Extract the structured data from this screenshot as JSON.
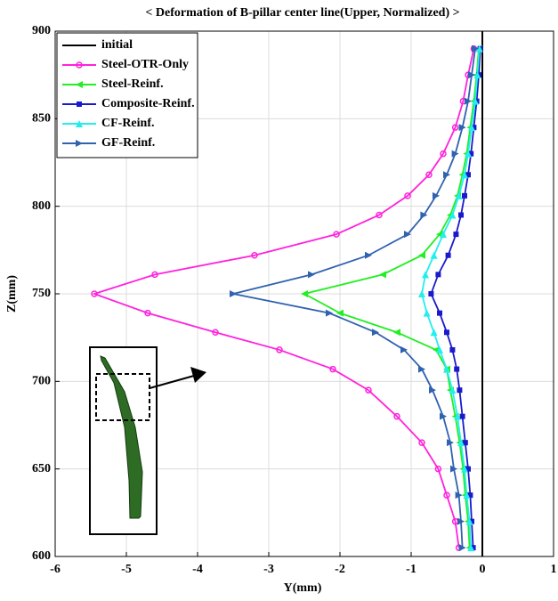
{
  "chart_data": {
    "type": "line",
    "title": "< Deformation of B-pillar center line(Upper, Normalized) >",
    "x_label": "Y(mm)",
    "y_label": "Z(mm)",
    "xlim": [
      -6,
      1
    ],
    "xticks": [
      -6,
      -5,
      -4,
      -3,
      -2,
      -1,
      0,
      1
    ],
    "ylim": [
      600,
      900
    ],
    "yticks": [
      600,
      650,
      700,
      750,
      800,
      850,
      900
    ],
    "grid": true,
    "legend": "upper left",
    "series": [
      {
        "name": "initial",
        "color": "#000000",
        "marker": "none",
        "x": [
          0,
          0
        ],
        "y": [
          600,
          900
        ]
      },
      {
        "name": "Steel-OTR-Only",
        "color": "#ff22dd",
        "marker": "circle",
        "y": [
          605,
          620,
          635,
          650,
          665,
          680,
          695,
          707,
          718,
          728,
          739,
          750,
          761,
          772,
          784,
          795,
          806,
          818,
          830,
          845,
          860,
          875,
          890
        ],
        "x": [
          -0.33,
          -0.38,
          -0.5,
          -0.62,
          -0.85,
          -1.2,
          -1.6,
          -2.1,
          -2.85,
          -3.75,
          -4.7,
          -5.45,
          -4.6,
          -3.2,
          -2.05,
          -1.45,
          -1.05,
          -0.75,
          -0.55,
          -0.38,
          -0.27,
          -0.2,
          -0.12
        ]
      },
      {
        "name": "Steel-Reinf.",
        "color": "#22ee22",
        "marker": "triangle-left",
        "y": [
          605,
          620,
          635,
          650,
          665,
          680,
          695,
          707,
          718,
          728,
          739,
          750,
          761,
          772,
          784,
          795,
          806,
          818,
          830,
          845,
          860,
          875,
          890
        ],
        "x": [
          -0.18,
          -0.2,
          -0.24,
          -0.27,
          -0.32,
          -0.38,
          -0.45,
          -0.5,
          -0.65,
          -1.2,
          -2.0,
          -2.5,
          -1.4,
          -0.85,
          -0.6,
          -0.45,
          -0.35,
          -0.28,
          -0.22,
          -0.17,
          -0.12,
          -0.08,
          -0.05
        ]
      },
      {
        "name": "Composite-Reinf.",
        "color": "#1a1acc",
        "marker": "square",
        "y": [
          605,
          620,
          635,
          650,
          665,
          680,
          695,
          707,
          718,
          728,
          739,
          750,
          761,
          772,
          784,
          795,
          806,
          818,
          830,
          845,
          860,
          875,
          890
        ],
        "x": [
          -0.13,
          -0.15,
          -0.17,
          -0.2,
          -0.24,
          -0.28,
          -0.32,
          -0.36,
          -0.42,
          -0.5,
          -0.6,
          -0.72,
          -0.62,
          -0.48,
          -0.37,
          -0.3,
          -0.25,
          -0.2,
          -0.16,
          -0.12,
          -0.08,
          -0.05,
          -0.03
        ]
      },
      {
        "name": "CF-Reinf.",
        "color": "#22eeee",
        "marker": "triangle-up",
        "y": [
          605,
          620,
          635,
          650,
          665,
          680,
          695,
          707,
          718,
          728,
          739,
          750,
          761,
          772,
          784,
          795,
          806,
          818,
          830,
          845,
          860,
          875,
          890
        ],
        "x": [
          -0.16,
          -0.18,
          -0.22,
          -0.25,
          -0.3,
          -0.35,
          -0.42,
          -0.5,
          -0.6,
          -0.68,
          -0.78,
          -0.85,
          -0.8,
          -0.68,
          -0.55,
          -0.42,
          -0.33,
          -0.25,
          -0.2,
          -0.15,
          -0.1,
          -0.07,
          -0.04
        ]
      },
      {
        "name": "GF-Reinf.",
        "color": "#2f62b0",
        "marker": "triangle-right",
        "y": [
          605,
          620,
          635,
          650,
          665,
          680,
          695,
          707,
          718,
          728,
          739,
          750,
          761,
          772,
          784,
          795,
          806,
          818,
          830,
          845,
          860,
          875,
          890
        ],
        "x": [
          -0.28,
          -0.3,
          -0.33,
          -0.4,
          -0.45,
          -0.55,
          -0.7,
          -0.85,
          -1.1,
          -1.5,
          -2.15,
          -3.5,
          -2.4,
          -1.6,
          -1.05,
          -0.82,
          -0.65,
          -0.5,
          -0.38,
          -0.28,
          -0.2,
          -0.15,
          -0.1
        ]
      }
    ]
  }
}
